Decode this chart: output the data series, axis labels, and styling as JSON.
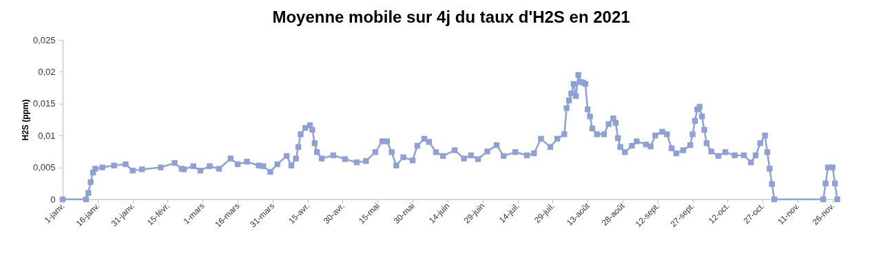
{
  "chart_data": {
    "type": "line",
    "title": "Moyenne mobile sur 4j du taux d'H2S en 2021",
    "ylabel": "H2S (ppm)",
    "x": [
      "--01-01",
      "--01-11",
      "--01-12",
      "--01-13",
      "--01-14",
      "--01-15",
      "--01-18",
      "--01-23",
      "--01-28",
      "--01-31",
      "--02-04",
      "--02-12",
      "--02-18",
      "--02-21",
      "--02-22",
      "--02-26",
      "--02-29",
      "--03-04",
      "--03-08",
      "--03-13",
      "--03-16",
      "--03-20",
      "--03-25",
      "--03-27",
      "--03-30",
      "--04-02",
      "--04-06",
      "--04-08",
      "--04-10",
      "--04-11",
      "--04-12",
      "--04-14",
      "--04-16",
      "--04-17",
      "--04-18",
      "--04-19",
      "--04-21",
      "--04-26",
      "--05-01",
      "--05-06",
      "--05-10",
      "--05-14",
      "--05-17",
      "--05-19",
      "--05-21",
      "--05-23",
      "--05-26",
      "--05-30",
      "--06-01",
      "--06-04",
      "--06-06",
      "--06-09",
      "--06-12",
      "--06-17",
      "--06-21",
      "--06-24",
      "--06-27",
      "--07-01",
      "--07-05",
      "--07-08",
      "--07-13",
      "--07-18",
      "--07-21",
      "--07-24",
      "--07-28",
      "--07-31",
      "--08-03",
      "--08-04",
      "--08-05",
      "--08-06",
      "--08-07",
      "--08-08",
      "--08-09",
      "--08-10",
      "--08-11",
      "--08-12",
      "--08-13",
      "--08-14",
      "--08-15",
      "--08-17",
      "--08-20",
      "--08-22",
      "--08-24",
      "--08-25",
      "--08-26",
      "--08-27",
      "--08-29",
      "--09-01",
      "--09-03",
      "--09-07",
      "--09-09",
      "--09-11",
      "--09-14",
      "--09-16",
      "--09-18",
      "--09-20",
      "--09-23",
      "--09-26",
      "--09-27",
      "--09-28",
      "--09-29",
      "--09-30",
      "--10-01",
      "--10-02",
      "--10-03",
      "--10-05",
      "--10-08",
      "--10-11",
      "--10-15",
      "--10-19",
      "--10-22",
      "--10-24",
      "--10-26",
      "--10-28",
      "--10-29",
      "--10-30",
      "--10-31",
      "--11-01",
      "--11-22",
      "--11-23",
      "--11-24",
      "--11-26",
      "--11-27",
      "--11-28"
    ],
    "series": [
      {
        "color": "#8da0d8",
        "values": [
          0,
          0,
          0.001,
          0.0027,
          0.0042,
          0.0048,
          0.005,
          0.0053,
          0.0055,
          0.0045,
          0.0047,
          0.005,
          0.0057,
          0.0048,
          0.0047,
          0.0052,
          0.0045,
          0.0052,
          0.0048,
          0.0064,
          0.0055,
          0.0059,
          0.0053,
          0.0052,
          0.0043,
          0.0055,
          0.0068,
          0.0053,
          0.0064,
          0.0082,
          0.0102,
          0.0112,
          0.0116,
          0.0109,
          0.0088,
          0.0074,
          0.0064,
          0.0069,
          0.0063,
          0.0058,
          0.006,
          0.0074,
          0.0091,
          0.0091,
          0.0074,
          0.0053,
          0.0066,
          0.0061,
          0.0084,
          0.0095,
          0.009,
          0.0074,
          0.0068,
          0.0077,
          0.0064,
          0.0069,
          0.0063,
          0.0075,
          0.0085,
          0.0068,
          0.0074,
          0.0069,
          0.0072,
          0.0095,
          0.0082,
          0.0095,
          0.0102,
          0.0143,
          0.0155,
          0.0166,
          0.0181,
          0.0162,
          0.0195,
          0.0184,
          0.0183,
          0.0181,
          0.0141,
          0.013,
          0.0111,
          0.0102,
          0.0102,
          0.0118,
          0.0127,
          0.012,
          0.0096,
          0.0082,
          0.0074,
          0.0084,
          0.0091,
          0.0086,
          0.0083,
          0.01,
          0.0106,
          0.0102,
          0.008,
          0.0072,
          0.0077,
          0.0085,
          0.0102,
          0.0123,
          0.0141,
          0.0145,
          0.013,
          0.0109,
          0.0088,
          0.0075,
          0.0068,
          0.0074,
          0.0069,
          0.0069,
          0.0058,
          0.0069,
          0.0088,
          0.01,
          0.0074,
          0.0048,
          0.0024,
          0,
          0,
          0.0025,
          0.005,
          0.005,
          0.0025,
          0
        ]
      }
    ],
    "xlim": [
      "--01-01",
      "--11-29"
    ],
    "xticks": [
      {
        "value": "--01-01",
        "label": "1-janv."
      },
      {
        "value": "--01-16",
        "label": "16-janv."
      },
      {
        "value": "--01-31",
        "label": "31-janv."
      },
      {
        "value": "--02-15",
        "label": "15-févr."
      },
      {
        "value": "--03-01",
        "label": "1-mars"
      },
      {
        "value": "--03-16",
        "label": "16-mars"
      },
      {
        "value": "--03-31",
        "label": "31-mars"
      },
      {
        "value": "--04-15",
        "label": "15-avr."
      },
      {
        "value": "--04-30",
        "label": "30-avr."
      },
      {
        "value": "--05-15",
        "label": "15-mai"
      },
      {
        "value": "--05-30",
        "label": "30-mai"
      },
      {
        "value": "--06-14",
        "label": "14-juin"
      },
      {
        "value": "--06-29",
        "label": "29-juin"
      },
      {
        "value": "--07-14",
        "label": "14-juil."
      },
      {
        "value": "--07-29",
        "label": "29-juil."
      },
      {
        "value": "--08-13",
        "label": "13-août"
      },
      {
        "value": "--08-28",
        "label": "28-août"
      },
      {
        "value": "--09-12",
        "label": "12-sept."
      },
      {
        "value": "--09-27",
        "label": "27-sept."
      },
      {
        "value": "--10-12",
        "label": "12-oct."
      },
      {
        "value": "--10-27",
        "label": "27-oct."
      },
      {
        "value": "--11-11",
        "label": "11-nov."
      },
      {
        "value": "--11-26",
        "label": "26-nov."
      }
    ],
    "ylim": [
      0,
      0.025
    ],
    "yticks": [
      0,
      {
        "value": 0.005,
        "label": "0,005"
      },
      {
        "value": 0.01,
        "label": "0,01"
      },
      {
        "value": 0.015,
        "label": "0,015"
      },
      {
        "value": 0.02,
        "label": "0,02"
      },
      {
        "value": 0.025,
        "label": "0,025"
      }
    ],
    "marker": "square",
    "line_style": "solid"
  }
}
